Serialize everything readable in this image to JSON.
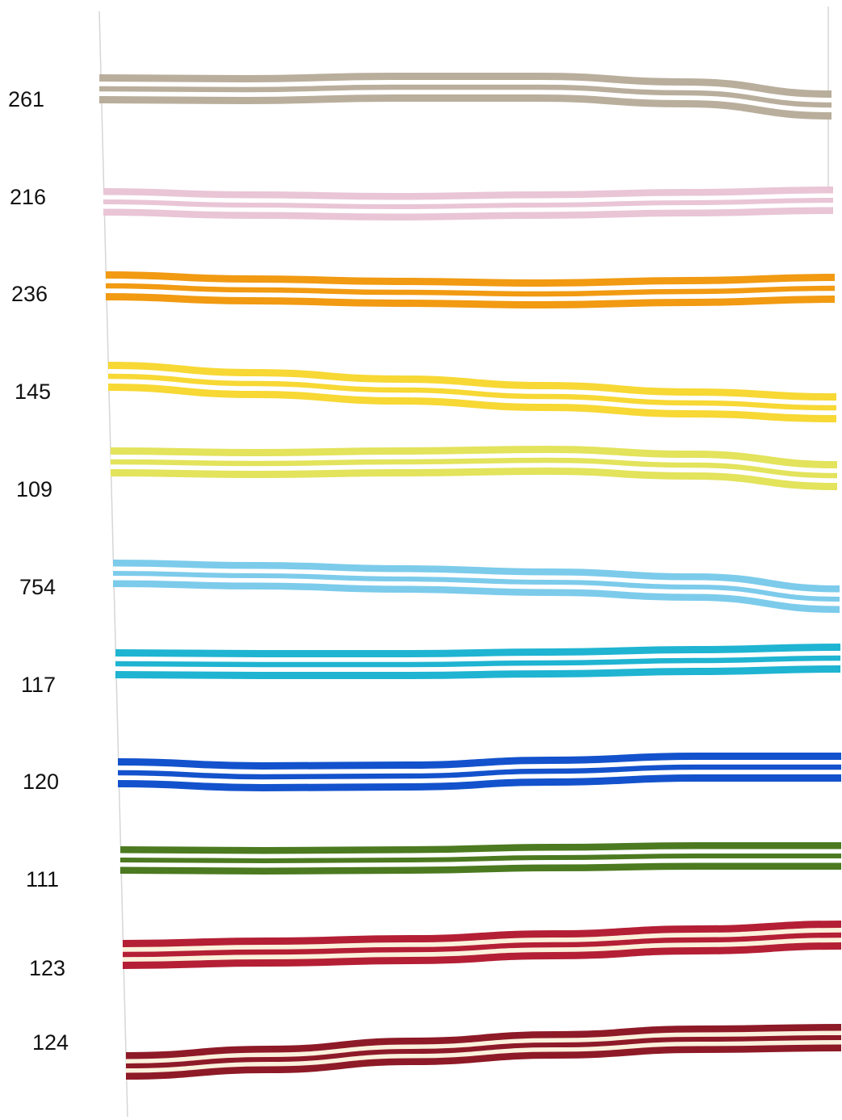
{
  "swatches": [
    {
      "code": "261",
      "color": "#b9ae9c",
      "stripe": "#ffffff"
    },
    {
      "code": "216",
      "color": "#e9c5d6",
      "stripe": "#ffffff"
    },
    {
      "code": "236",
      "color": "#f19a12",
      "stripe": "#ffffff"
    },
    {
      "code": "145",
      "color": "#f7d834",
      "stripe": "#ffffff"
    },
    {
      "code": "109",
      "color": "#e3e35c",
      "stripe": "#ffffff"
    },
    {
      "code": "754",
      "color": "#7ccbeb",
      "stripe": "#ffffff"
    },
    {
      "code": "117",
      "color": "#1fb4d1",
      "stripe": "#ffffff"
    },
    {
      "code": "120",
      "color": "#1352cc",
      "stripe": "#ffffff"
    },
    {
      "code": "111",
      "color": "#4c7a20",
      "stripe": "#ffffff"
    },
    {
      "code": "123",
      "color": "#b41f35",
      "stripe": "#fbf1dc"
    },
    {
      "code": "124",
      "color": "#8e1a27",
      "stripe": "#fbf1dc"
    }
  ],
  "frame_line_color": "#d6d6d6"
}
